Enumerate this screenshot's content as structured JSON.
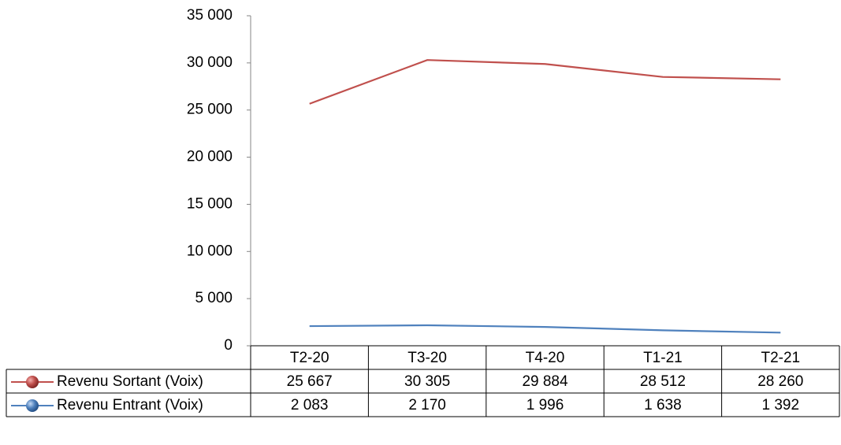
{
  "chart_data": {
    "type": "line",
    "categories": [
      "T2-20",
      "T3-20",
      "T4-20",
      "T1-21",
      "T2-21"
    ],
    "series": [
      {
        "name": "Revenu Sortant (Voix)",
        "color": "#c0504d",
        "values": [
          25667,
          30305,
          29884,
          28512,
          28260
        ],
        "value_labels": [
          "25 667",
          "30 305",
          "29 884",
          "28 512",
          "28 260"
        ]
      },
      {
        "name": "Revenu Entrant (Voix)",
        "color": "#4f81bd",
        "values": [
          2083,
          2170,
          1996,
          1638,
          1392
        ],
        "value_labels": [
          "2 083",
          "2 170",
          "1 996",
          "1 638",
          "1 392"
        ]
      }
    ],
    "ylim": [
      0,
      35000
    ],
    "yticks": [
      0,
      {
        "value": 5000,
        "label": "5 000"
      },
      {
        "value": 10000,
        "label": "10 000"
      },
      {
        "value": 15000,
        "label": "15 000"
      },
      {
        "value": 20000,
        "label": "20 000"
      },
      {
        "value": 25000,
        "label": "25 000"
      },
      {
        "value": 30000,
        "label": "30 000"
      },
      {
        "value": 35000,
        "label": "35 000"
      }
    ],
    "grid": false
  }
}
